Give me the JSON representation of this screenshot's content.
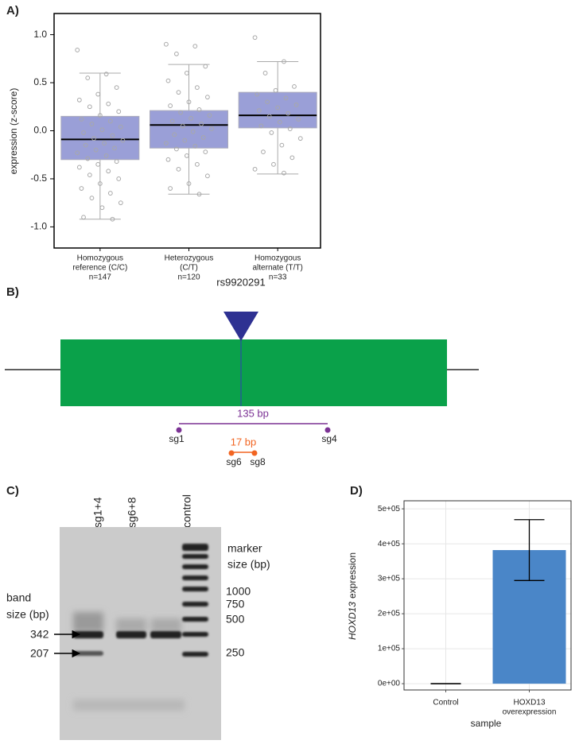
{
  "chart_data": [
    {
      "type": "box",
      "panel_label": "A)",
      "ylabel": "expression (z-score)",
      "categories": [
        [
          "Homozygous",
          "reference (C/C)",
          "n=147"
        ],
        [
          "Heterozygous",
          "(C/T)",
          "n=120"
        ],
        [
          "Homozygous",
          "alternate (T/T)",
          "n=33"
        ]
      ],
      "groups": [
        {
          "whisker_low": -0.92,
          "q1": -0.3,
          "median": -0.09,
          "q3": 0.15,
          "whisker_high": 0.6,
          "points": [
            0.84,
            0.59,
            0.55,
            0.45,
            0.38,
            0.32,
            0.28,
            0.25,
            0.2,
            0.16,
            0.12,
            0.1,
            0.07,
            0.04,
            0.01,
            -0.02,
            -0.05,
            -0.08,
            -0.1,
            -0.13,
            -0.15,
            -0.18,
            -0.2,
            -0.23,
            -0.26,
            -0.29,
            -0.32,
            -0.35,
            -0.38,
            -0.42,
            -0.46,
            -0.5,
            -0.55,
            -0.6,
            -0.65,
            -0.7,
            -0.75,
            -0.8,
            -0.9,
            -0.92
          ]
        },
        {
          "whisker_low": -0.66,
          "q1": -0.18,
          "median": 0.06,
          "q3": 0.21,
          "whisker_high": 0.69,
          "points": [
            0.9,
            0.88,
            0.8,
            0.67,
            0.6,
            0.52,
            0.45,
            0.4,
            0.35,
            0.3,
            0.26,
            0.22,
            0.19,
            0.16,
            0.13,
            0.1,
            0.07,
            0.05,
            0.02,
            -0.01,
            -0.04,
            -0.07,
            -0.1,
            -0.13,
            -0.16,
            -0.19,
            -0.22,
            -0.26,
            -0.3,
            -0.35,
            -0.4,
            -0.47,
            -0.55,
            -0.6,
            -0.66
          ]
        },
        {
          "whisker_low": -0.45,
          "q1": 0.03,
          "median": 0.16,
          "q3": 0.4,
          "whisker_high": 0.72,
          "points": [
            0.97,
            0.72,
            0.6,
            0.46,
            0.42,
            0.38,
            0.34,
            0.3,
            0.27,
            0.24,
            0.21,
            0.18,
            0.15,
            0.12,
            0.09,
            0.05,
            0.02,
            -0.02,
            -0.08,
            -0.15,
            -0.22,
            -0.28,
            -0.35,
            -0.4,
            -0.44
          ]
        }
      ],
      "color": "#8f95d3",
      "point_color": "#a8a8a8",
      "ylim": [
        -1.22,
        1.22
      ],
      "yticks": [
        {
          "value": -1,
          "label": "-1.0"
        },
        -0.5,
        {
          "value": 0,
          "label": "0.0"
        },
        0.5,
        {
          "value": 1,
          "label": "1.0"
        }
      ]
    },
    {
      "type": "bar",
      "panel_label": "D)",
      "ylabel_gene": "HOXD13",
      "ylabel": "expression",
      "xlabel": "sample",
      "categories": [
        [
          "Control"
        ],
        [
          "HOXD13",
          "overexpression"
        ]
      ],
      "values": [
        0,
        382000
      ],
      "errors": [
        0,
        87000
      ],
      "color": "#4a86c8",
      "ylim": [
        -18000,
        523000
      ],
      "grid": true,
      "yticks": [
        {
          "value": 0,
          "label": "0e+00"
        },
        {
          "value": 100000,
          "label": "1e+05"
        },
        {
          "value": 200000,
          "label": "2e+05"
        },
        {
          "value": 300000,
          "label": "3e+05"
        },
        {
          "value": 400000,
          "label": "4e+05"
        },
        {
          "value": 500000,
          "label": "5e+05"
        }
      ]
    }
  ],
  "diagram": {
    "panel_label": "B)",
    "snp": "rs9920291",
    "pairs": [
      {
        "distance": "135 bp",
        "left": "sg1",
        "right": "sg4"
      },
      {
        "distance": "17 bp",
        "left": "sg6",
        "right": "sg8"
      }
    ]
  },
  "gel": {
    "panel_label": "C)",
    "lanes": [
      "sg1+4",
      "sg6+8",
      "control"
    ],
    "marker_title": [
      "marker",
      "size (bp)"
    ],
    "marker_sizes": [
      1000,
      750,
      500,
      250
    ],
    "band_title": [
      "band",
      "size (bp)"
    ],
    "band_sizes": [
      342,
      207
    ]
  }
}
